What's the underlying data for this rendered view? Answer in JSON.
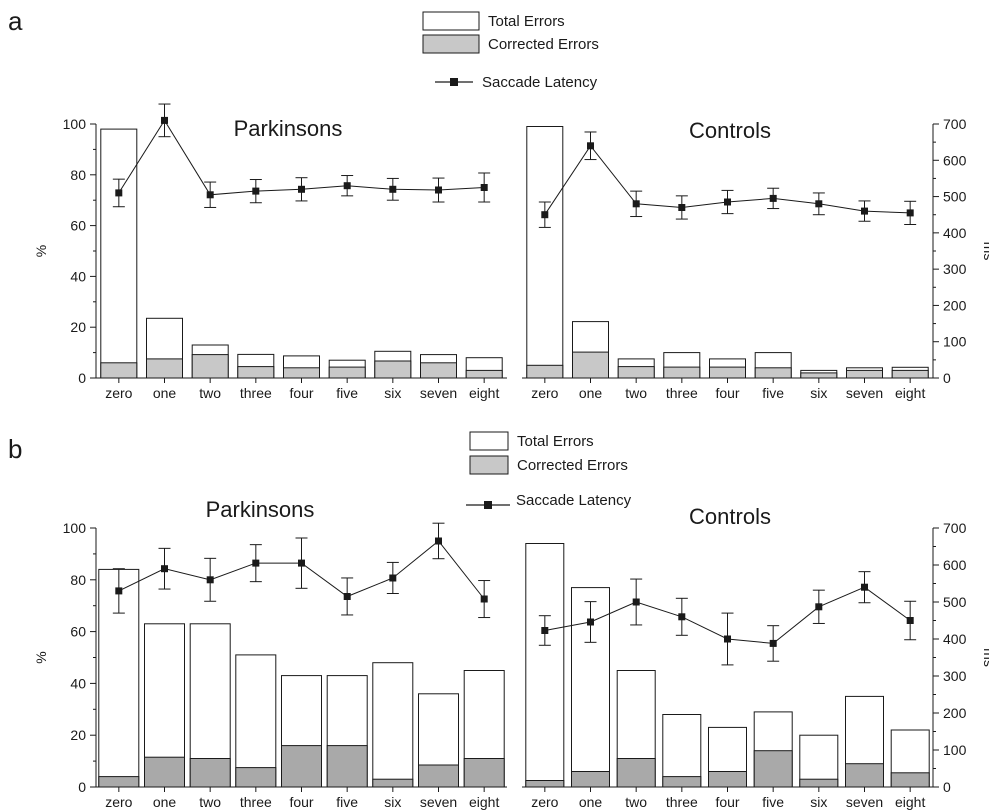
{
  "legend": {
    "total": "Total Errors",
    "corrected": "Corrected Errors",
    "latency": "Saccade Latency"
  },
  "colors": {
    "total_fill": "#ffffff",
    "corrected_fill": "#c8c8c8",
    "corrected_fill_b": "#a9a9a9",
    "stroke": "#1a1a1a"
  },
  "panels": [
    {
      "letter": "a",
      "legend_placement": "top-center",
      "chart_data": [
        {
          "type": "bar",
          "title": "Parkinsons",
          "categories": [
            "zero",
            "one",
            "two",
            "three",
            "four",
            "five",
            "six",
            "seven",
            "eight"
          ],
          "ylabel": "%",
          "ylim": [
            0,
            100
          ],
          "yticks": [
            0,
            20,
            40,
            60,
            80,
            100
          ],
          "series": [
            {
              "name": "Total Errors",
              "values": [
                98,
                23.5,
                13,
                9.3,
                8.7,
                7,
                10.5,
                9.2,
                8
              ]
            },
            {
              "name": "Corrected Errors",
              "values": [
                6,
                7.5,
                9.2,
                4.5,
                4,
                4.3,
                6.7,
                6,
                3
              ]
            },
            {
              "name": "Saccade Latency",
              "axis": "right",
              "values": [
                510,
                710,
                505,
                515,
                520,
                530,
                520,
                518,
                525
              ],
              "err": [
                38,
                45,
                35,
                32,
                32,
                28,
                30,
                33,
                40
              ]
            }
          ]
        },
        {
          "type": "bar",
          "title": "Controls",
          "categories": [
            "zero",
            "one",
            "two",
            "three",
            "four",
            "five",
            "six",
            "seven",
            "eight"
          ],
          "y2label": "ms",
          "y2lim": [
            0,
            700
          ],
          "y2ticks": [
            0,
            100,
            200,
            300,
            400,
            500,
            600,
            700
          ],
          "series": [
            {
              "name": "Total Errors",
              "values": [
                99,
                22.2,
                7.5,
                10,
                7.5,
                10,
                3,
                4,
                4.2
              ]
            },
            {
              "name": "Corrected Errors",
              "values": [
                5,
                10.2,
                4.5,
                4.3,
                4.3,
                4,
                2,
                3,
                3
              ]
            },
            {
              "name": "Saccade Latency",
              "axis": "right",
              "values": [
                450,
                640,
                480,
                470,
                485,
                495,
                480,
                460,
                455
              ],
              "err": [
                35,
                38,
                35,
                32,
                32,
                28,
                30,
                28,
                32
              ]
            }
          ]
        }
      ]
    },
    {
      "letter": "b",
      "legend_placement": "top-center",
      "chart_data": [
        {
          "type": "bar",
          "title": "Parkinsons",
          "categories": [
            "zero",
            "one",
            "two",
            "three",
            "four",
            "five",
            "six",
            "seven",
            "eight"
          ],
          "ylabel": "%",
          "ylim": [
            0,
            100
          ],
          "yticks": [
            0,
            20,
            40,
            60,
            80,
            100
          ],
          "series": [
            {
              "name": "Total Errors",
              "values": [
                84,
                63,
                63,
                51,
                43,
                43,
                48,
                36,
                45
              ]
            },
            {
              "name": "Corrected Errors",
              "values": [
                4,
                11.5,
                11,
                7.5,
                16,
                16,
                3,
                8.5,
                11
              ]
            },
            {
              "name": "Saccade Latency",
              "axis": "right",
              "values": [
                530,
                590,
                560,
                605,
                605,
                515,
                565,
                665,
                508
              ],
              "err": [
                60,
                55,
                58,
                50,
                68,
                50,
                42,
                48,
                50
              ]
            }
          ]
        },
        {
          "type": "bar",
          "title": "Controls",
          "categories": [
            "zero",
            "one",
            "two",
            "three",
            "four",
            "five",
            "six",
            "seven",
            "eight"
          ],
          "y2label": "ms",
          "y2lim": [
            0,
            700
          ],
          "y2ticks": [
            0,
            100,
            200,
            300,
            400,
            500,
            600,
            700
          ],
          "series": [
            {
              "name": "Total Errors",
              "values": [
                94,
                77,
                45,
                28,
                23,
                29,
                20,
                35,
                22
              ]
            },
            {
              "name": "Corrected Errors",
              "values": [
                2.5,
                6,
                11,
                4,
                6,
                14,
                3,
                9,
                5.5
              ]
            },
            {
              "name": "Saccade Latency",
              "axis": "right",
              "values": [
                423,
                446,
                500,
                460,
                400,
                388,
                487,
                540,
                450
              ],
              "err": [
                40,
                55,
                62,
                50,
                70,
                48,
                45,
                42,
                52
              ]
            }
          ]
        }
      ]
    }
  ]
}
